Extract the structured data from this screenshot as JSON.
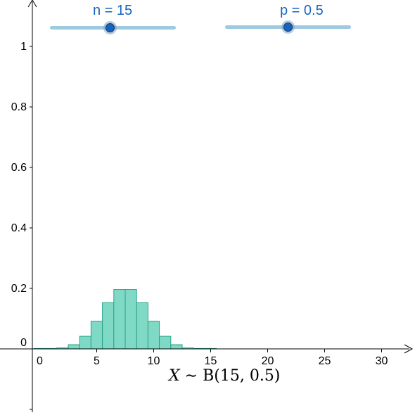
{
  "sliders": {
    "n": {
      "label": "n = 15",
      "value": 15,
      "min": 1,
      "max": 30,
      "label_color": "#1565c0",
      "track_color": "#9ecae1",
      "knob_color": "#1565c0"
    },
    "p": {
      "label": "p = 0.5",
      "value": 0.5,
      "min": 0,
      "max": 1,
      "label_color": "#1565c0",
      "track_color": "#9ecae1",
      "knob_color": "#1565c0"
    }
  },
  "formula": {
    "variable": "X",
    "relation": " ∼ ",
    "distribution": "B(15, 0.5)"
  },
  "chart_data": {
    "type": "bar",
    "title": "",
    "xlabel": "",
    "ylabel": "",
    "xlim": [
      -0.5,
      32.5
    ],
    "ylim": [
      -0.2,
      1.1
    ],
    "x_ticks": [
      0,
      5,
      10,
      15,
      20,
      25,
      30
    ],
    "x_tick_labels": [
      "0",
      "5",
      "10",
      "15",
      "20",
      "25",
      "30"
    ],
    "y_ticks": [
      0,
      0.2,
      0.4,
      0.6,
      0.8,
      1
    ],
    "y_tick_labels": [
      "0",
      "0.2",
      "0.4",
      "0.6",
      "0.8",
      "1"
    ],
    "grid": false,
    "bar_fill": "#80d9c5",
    "bar_stroke": "#26a48a",
    "x": [
      0,
      1,
      2,
      3,
      4,
      5,
      6,
      7,
      8,
      9,
      10,
      11,
      12,
      13,
      14,
      15
    ],
    "values": [
      0.0,
      0.0005,
      0.0032,
      0.0139,
      0.0417,
      0.0916,
      0.1527,
      0.1964,
      0.1964,
      0.1527,
      0.0916,
      0.0417,
      0.0139,
      0.0032,
      0.0005,
      0.0
    ]
  }
}
